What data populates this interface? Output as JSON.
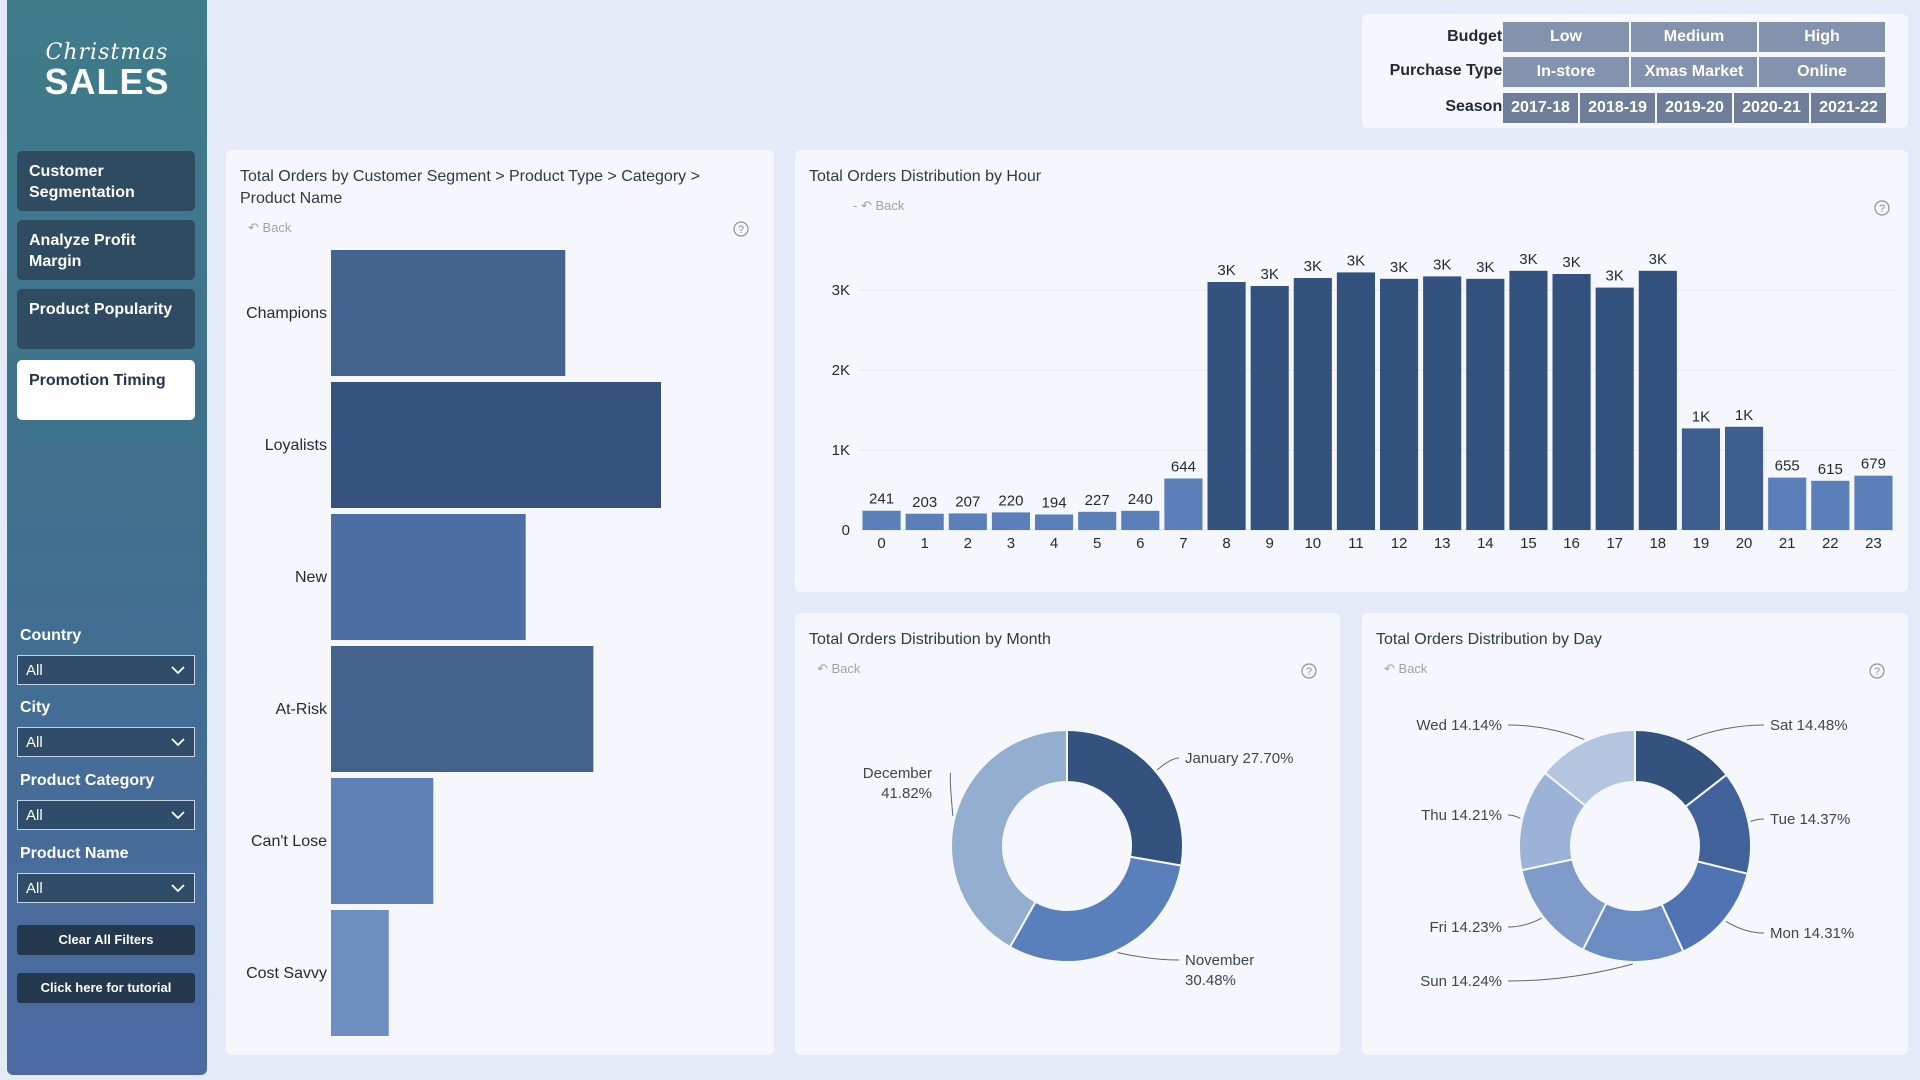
{
  "sidebar": {
    "logo": {
      "script": "Christmas",
      "big": "SALES"
    },
    "nav": [
      {
        "label": "Customer Segmentation"
      },
      {
        "label": "Analyze Profit Margin"
      },
      {
        "label": "Product Popularity"
      },
      {
        "label": "Promotion Timing"
      }
    ],
    "filters": [
      {
        "label": "Country",
        "value": "All"
      },
      {
        "label": "City",
        "value": "All"
      },
      {
        "label": "Product Category",
        "value": "All"
      },
      {
        "label": "Product Name",
        "value": "All"
      }
    ],
    "clear_label": "Clear All Filters",
    "tutorial_label": "Click here for tutorial"
  },
  "slicers": {
    "budget": {
      "label": "Budget :",
      "options": [
        "Low",
        "Medium",
        "High"
      ]
    },
    "purchase_type": {
      "label": "Purchase Type :",
      "options": [
        "In-store",
        "Xmas Market",
        "Online"
      ]
    },
    "season": {
      "label": "Season :",
      "options": [
        "2017-18",
        "2018-19",
        "2019-20",
        "2020-21",
        "2021-22"
      ]
    }
  },
  "back_label": "Back",
  "colors": {
    "dark": "#34527e",
    "mid": "#4a6b9e",
    "light": "#6e8ebf",
    "sidebar": "#2e4b62"
  },
  "segment_chart": {
    "title": "Total Orders by Customer Segment > Product Type > Category > Product Name",
    "chart_data": {
      "type": "bar",
      "orientation": "horizontal",
      "categories": [
        "Champions",
        "Loyalists",
        "New",
        "At-Risk",
        "Can't Lose",
        "Cost Savvy"
      ],
      "values": [
        7100,
        10000,
        5900,
        7950,
        3100,
        1750
      ],
      "colors": [
        "#44628e",
        "#36527e",
        "#4d6ea2",
        "#44628e",
        "#5f80b5",
        "#6e8ebf"
      ]
    }
  },
  "hour_chart": {
    "title": "Total Orders Distribution by Hour",
    "chart_data": {
      "type": "bar",
      "categories": [
        "0",
        "1",
        "2",
        "3",
        "4",
        "5",
        "6",
        "7",
        "8",
        "9",
        "10",
        "11",
        "12",
        "13",
        "14",
        "15",
        "16",
        "17",
        "18",
        "19",
        "20",
        "21",
        "22",
        "23"
      ],
      "values": [
        241,
        203,
        207,
        220,
        194,
        227,
        240,
        644,
        3100,
        3050,
        3150,
        3220,
        3140,
        3170,
        3140,
        3240,
        3200,
        3030,
        3240,
        1270,
        1290,
        655,
        615,
        679
      ],
      "labels": [
        "241",
        "203",
        "207",
        "220",
        "194",
        "227",
        "240",
        "644",
        "3K",
        "3K",
        "3K",
        "3K",
        "3K",
        "3K",
        "3K",
        "3K",
        "3K",
        "3K",
        "3K",
        "1K",
        "1K",
        "655",
        "615",
        "679"
      ],
      "yticks": [
        {
          "v": 0,
          "t": "0"
        },
        {
          "v": 1000,
          "t": "1K"
        },
        {
          "v": 2000,
          "t": "2K"
        },
        {
          "v": 3000,
          "t": "3K"
        }
      ],
      "ylim": [
        0,
        3500
      ]
    }
  },
  "month_chart": {
    "title": "Total Orders Distribution by Month",
    "chart_data": {
      "type": "pie",
      "donut": true,
      "slices": [
        {
          "name": "January",
          "pct": 27.7,
          "label1": "January 27.70%",
          "label2": "",
          "color": "#34527e"
        },
        {
          "name": "November",
          "pct": 30.48,
          "label1": "November",
          "label2": "30.48%",
          "color": "#5a80bb"
        },
        {
          "name": "December",
          "pct": 41.82,
          "label1": "December",
          "label2": "41.82%",
          "color": "#94aed0"
        }
      ]
    }
  },
  "day_chart": {
    "title": "Total Orders Distribution by Day",
    "chart_data": {
      "type": "pie",
      "donut": true,
      "slices": [
        {
          "name": "Sat",
          "pct": 14.48,
          "label": "Sat 14.48%",
          "color": "#34527e"
        },
        {
          "name": "Tue",
          "pct": 14.37,
          "label": "Tue 14.37%",
          "color": "#41619a"
        },
        {
          "name": "Mon",
          "pct": 14.31,
          "label": "Mon 14.31%",
          "color": "#4f73b3"
        },
        {
          "name": "Sun",
          "pct": 14.24,
          "label": "Sun 14.24%",
          "color": "#6b8bc3"
        },
        {
          "name": "Fri",
          "pct": 14.23,
          "label": "Fri 14.23%",
          "color": "#7f9bc9"
        },
        {
          "name": "Thu",
          "pct": 14.21,
          "label": "Thu 14.21%",
          "color": "#9cb2d6"
        },
        {
          "name": "Wed",
          "pct": 14.14,
          "label": "Wed 14.14%",
          "color": "#b4c5e0"
        }
      ]
    }
  }
}
